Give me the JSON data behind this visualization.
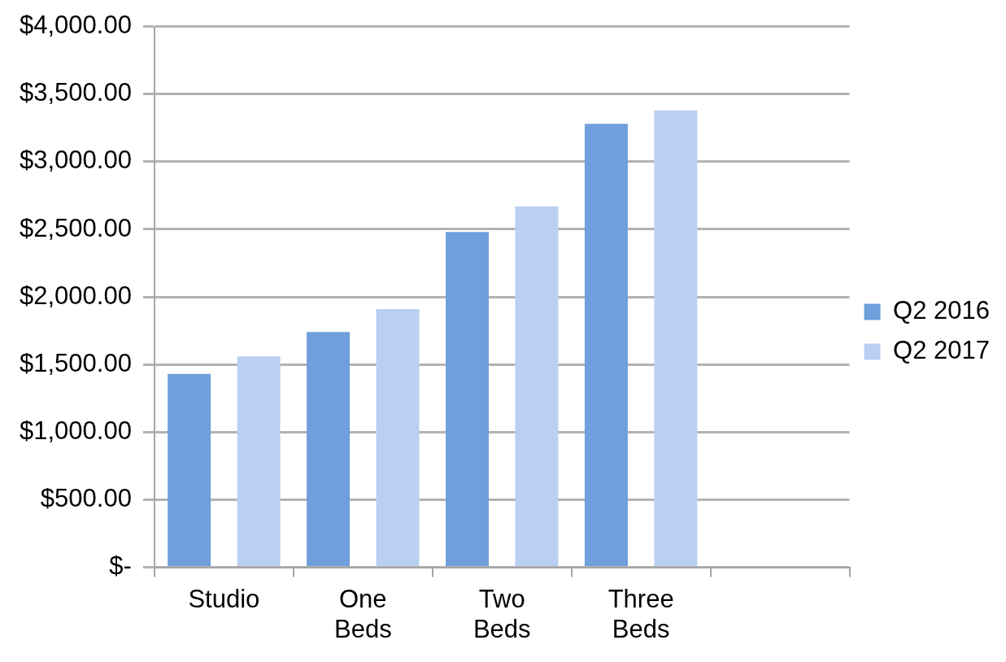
{
  "chart_data": {
    "type": "bar",
    "categories": [
      "Studio",
      "One Beds",
      "Two Beds",
      "Three Beds",
      null
    ],
    "series": [
      {
        "name": "Q2 2016",
        "color": "#6f9fdc",
        "values": [
          1430,
          1740,
          2480,
          3280,
          null
        ]
      },
      {
        "name": "Q2 2017",
        "color": "#b9d0f2",
        "values": [
          1560,
          1910,
          2670,
          3380,
          null
        ]
      }
    ],
    "ylim": [
      0,
      4000
    ],
    "yticks": [
      {
        "value": 0,
        "label": "$-"
      },
      {
        "value": 500,
        "label": "$500.00"
      },
      {
        "value": 1000,
        "label": "$1,000.00"
      },
      {
        "value": 1500,
        "label": "$1,500.00"
      },
      {
        "value": 2000,
        "label": "$2,000.00"
      },
      {
        "value": 2500,
        "label": "$2,500.00"
      },
      {
        "value": 3000,
        "label": "$3,000.00"
      },
      {
        "value": 3500,
        "label": "$3,500.00"
      },
      {
        "value": 4000,
        "label": "$4,000.00"
      }
    ],
    "grid": "y",
    "legend": "right"
  }
}
